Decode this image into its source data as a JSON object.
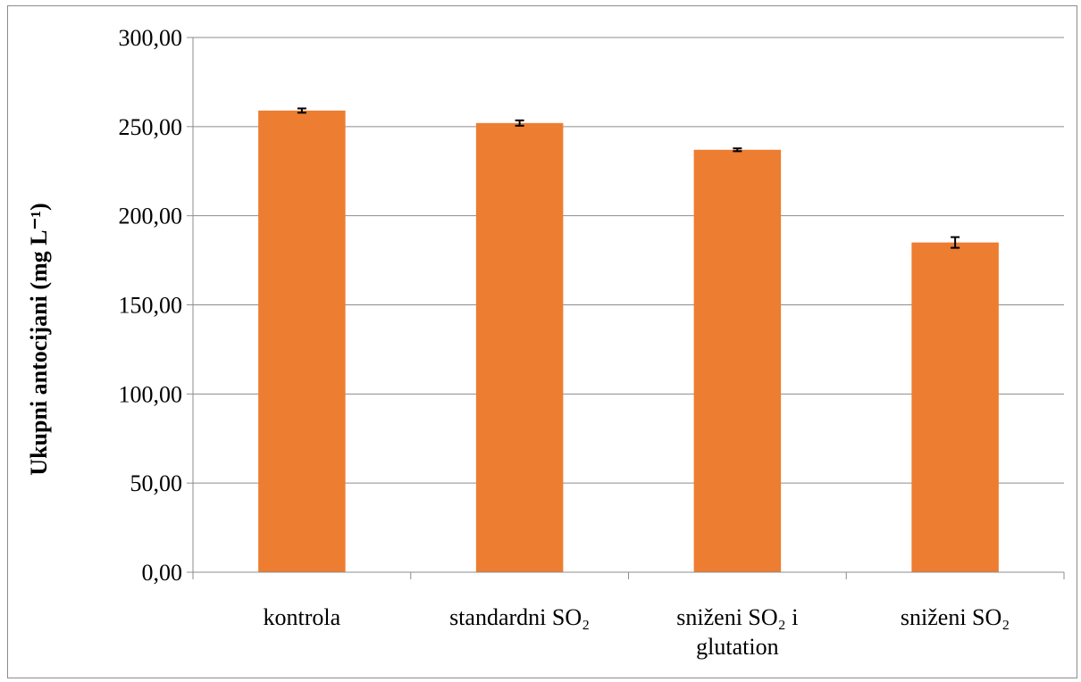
{
  "chart_data": {
    "type": "bar",
    "title": "",
    "xlabel": "",
    "ylabel": "Ukupni antocijani (mg L⁻¹)",
    "ylim": [
      0,
      300
    ],
    "y_ticks": [
      "0,00",
      "50,00",
      "100,00",
      "150,00",
      "200,00",
      "250,00",
      "300,00"
    ],
    "grid": true,
    "legend": "none",
    "categories": [
      [
        "kontrola"
      ],
      [
        "standardni SO₂"
      ],
      [
        "sniženi SO₂ i",
        "glutation"
      ],
      [
        "sniženi SO₂"
      ]
    ],
    "values": [
      259,
      252,
      237,
      185
    ],
    "errors": [
      1.2,
      1.5,
      0.8,
      3
    ],
    "bar_color": "#ed7d31",
    "grid_color": "#8c8c8c"
  }
}
